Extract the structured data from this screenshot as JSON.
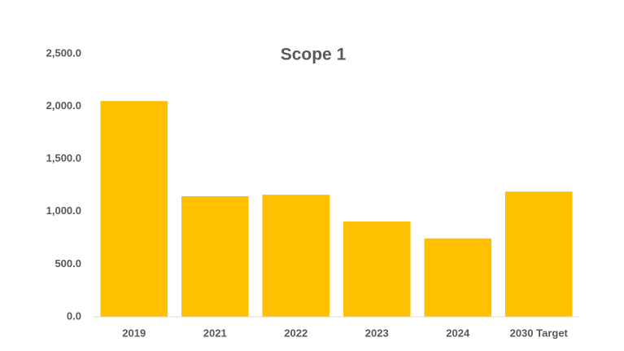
{
  "chart_data": {
    "type": "bar",
    "title": "Scope 1",
    "categories": [
      "2019",
      "2021",
      "2022",
      "2023",
      "2024",
      "2030 Target"
    ],
    "values": [
      2050,
      1145,
      1160,
      905,
      745,
      1190
    ],
    "color": "#ffc000",
    "ylim": [
      0,
      2500
    ],
    "yticks": [
      {
        "value": 0,
        "label": "0.0"
      },
      {
        "value": 500,
        "label": "500.0"
      },
      {
        "value": 1000,
        "label": "1,000.0"
      },
      {
        "value": 1500,
        "label": "1,500.0"
      },
      {
        "value": 2000,
        "label": "2,000.0"
      },
      {
        "value": 2500,
        "label": "2,500.0"
      }
    ],
    "grid": false
  }
}
